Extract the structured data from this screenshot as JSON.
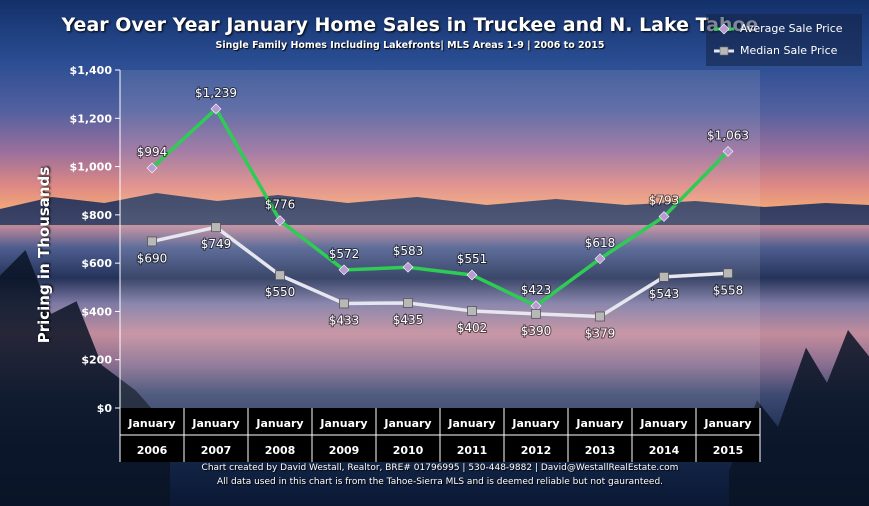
{
  "chart_data": {
    "type": "line",
    "title": "Year Over Year January Home Sales in Truckee and N. Lake Tahoe",
    "subtitle": "Single Family Homes Including Lakefronts| MLS Areas 1-9 | 2006 to 2015",
    "ylabel": "Pricing in Thousands",
    "xlabel": "",
    "ylim": [
      0,
      1400
    ],
    "yticks": [
      0,
      200,
      400,
      600,
      800,
      1000,
      1200,
      1400
    ],
    "ytick_labels": [
      "$0",
      "$200",
      "$400",
      "$600",
      "$800",
      "$1,000",
      "$1,200",
      "$1,400"
    ],
    "categories_top": [
      "January",
      "January",
      "January",
      "January",
      "January",
      "January",
      "January",
      "January",
      "January",
      "January"
    ],
    "categories": [
      "2006",
      "2007",
      "2008",
      "2009",
      "2010",
      "2011",
      "2012",
      "2013",
      "2014",
      "2015"
    ],
    "legend_position": "top-right",
    "grid": false,
    "series": [
      {
        "name": "Average Sale Price",
        "color": "#2ecc55",
        "marker_color": "#b99ad1",
        "values": [
          994,
          1239,
          776,
          572,
          583,
          551,
          423,
          618,
          793,
          1063
        ],
        "labels": [
          "$994",
          "$1,239",
          "$776",
          "$572",
          "$583",
          "$551",
          "$423",
          "$618",
          "$793",
          "$1,063"
        ]
      },
      {
        "name": "Median Sale Price",
        "color": "#e6e6ee",
        "marker_color": "#b8b8b8",
        "values": [
          690,
          749,
          550,
          433,
          435,
          402,
          390,
          379,
          543,
          558
        ],
        "labels": [
          "$690",
          "$749",
          "$550",
          "$433",
          "$435",
          "$402",
          "$390",
          "$379",
          "$543",
          "$558"
        ]
      }
    ]
  },
  "footer": {
    "line1": "Chart created by David Westall, Realtor, BRE# 01796995 | 530-448-9882 | David@WestallRealEstate.com",
    "line2": "All data used in this chart is from the Tahoe-Sierra MLS and is deemed reliable but  not gauranteed."
  }
}
